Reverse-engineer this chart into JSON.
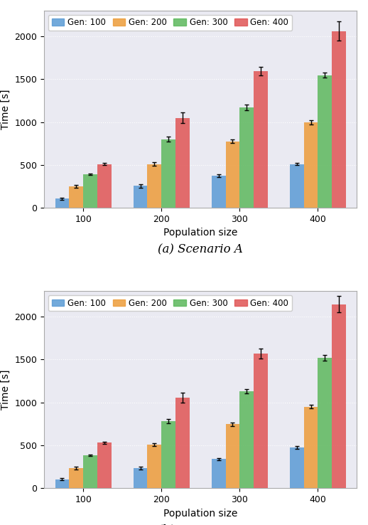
{
  "legend_labels": [
    "Gen: 100",
    "Gen: 200",
    "Gen: 300",
    "Gen: 400"
  ],
  "colors": [
    "#5b9bd5",
    "#ed9c3a",
    "#5db85d",
    "#e05555"
  ],
  "population_sizes": [
    100,
    200,
    300,
    400
  ],
  "scenario_a": {
    "gen100_means": [
      105,
      255,
      375,
      510
    ],
    "gen200_means": [
      250,
      510,
      775,
      1000
    ],
    "gen300_means": [
      390,
      800,
      1170,
      1545
    ],
    "gen400_means": [
      510,
      1050,
      1595,
      2060
    ],
    "gen100_errors": [
      15,
      20,
      20,
      15
    ],
    "gen200_errors": [
      15,
      20,
      20,
      25
    ],
    "gen300_errors": [
      10,
      30,
      30,
      30
    ],
    "gen400_errors": [
      12,
      65,
      50,
      110
    ],
    "xlabel": "Population size",
    "ylabel": "Time [s]",
    "caption": "(a) Scenario A"
  },
  "scenario_b": {
    "gen100_means": [
      105,
      235,
      340,
      475
    ],
    "gen200_means": [
      235,
      510,
      745,
      950
    ],
    "gen300_means": [
      385,
      785,
      1130,
      1520
    ],
    "gen400_means": [
      530,
      1055,
      1570,
      2145
    ],
    "gen100_errors": [
      15,
      15,
      15,
      15
    ],
    "gen200_errors": [
      15,
      15,
      20,
      20
    ],
    "gen300_errors": [
      10,
      25,
      25,
      30
    ],
    "gen400_errors": [
      12,
      55,
      55,
      95
    ],
    "xlabel": "Population size",
    "ylabel": "Time [s]",
    "caption": "(b) Scenario B"
  },
  "ylim": [
    0,
    2300
  ],
  "yticks": [
    0,
    500,
    1000,
    1500,
    2000
  ],
  "bar_width": 0.18,
  "ax_facecolor": "#eaeaf2",
  "grid_color": "#ffffff",
  "grid_alpha": 1.0,
  "grid_linestyle": ":"
}
